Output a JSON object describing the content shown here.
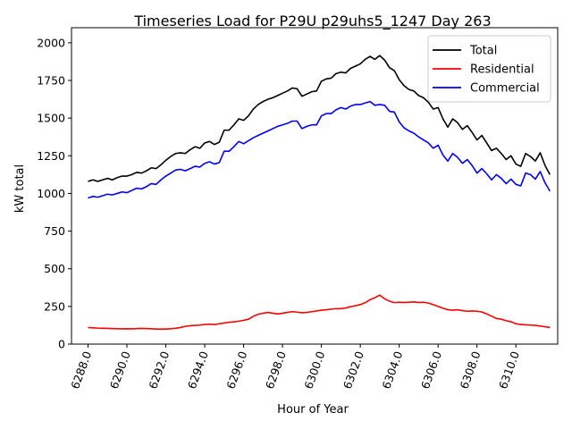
{
  "chart_data": {
    "type": "line",
    "title": "Timeseries Load for P29U p29uhs5_1247  Day 263",
    "xlabel": "Hour of Year",
    "ylabel": "kW total",
    "xlim": [
      6287.15,
      6312.15
    ],
    "ylim": [
      0,
      2100
    ],
    "x_ticks": [
      6288,
      6290,
      6292,
      6294,
      6296,
      6298,
      6300,
      6302,
      6304,
      6306,
      6308,
      6310
    ],
    "x_tick_labels": [
      "6288.0",
      "6290.0",
      "6292.0",
      "6294.0",
      "6296.0",
      "6298.0",
      "6300.0",
      "6302.0",
      "6304.0",
      "6306.0",
      "6308.0",
      "6310.0"
    ],
    "y_ticks": [
      0,
      250,
      500,
      750,
      1000,
      1250,
      1500,
      1750,
      2000
    ],
    "y_tick_labels": [
      "0",
      "250",
      "500",
      "750",
      "1000",
      "1250",
      "1500",
      "1750",
      "2000"
    ],
    "legend_position": "top-right",
    "x_start": 6288,
    "x_step": 0.25,
    "series": [
      {
        "name": "Total",
        "color": "#000000",
        "values": [
          1080,
          1090,
          1080,
          1090,
          1100,
          1090,
          1105,
          1115,
          1115,
          1125,
          1140,
          1135,
          1150,
          1170,
          1165,
          1190,
          1220,
          1245,
          1265,
          1270,
          1265,
          1290,
          1310,
          1300,
          1335,
          1345,
          1325,
          1340,
          1420,
          1420,
          1455,
          1495,
          1485,
          1515,
          1560,
          1590,
          1610,
          1625,
          1635,
          1650,
          1665,
          1680,
          1700,
          1695,
          1645,
          1660,
          1675,
          1680,
          1745,
          1760,
          1765,
          1795,
          1805,
          1800,
          1830,
          1845,
          1860,
          1890,
          1910,
          1890,
          1915,
          1885,
          1835,
          1815,
          1755,
          1715,
          1690,
          1680,
          1650,
          1635,
          1605,
          1560,
          1570,
          1495,
          1440,
          1495,
          1470,
          1425,
          1450,
          1405,
          1355,
          1385,
          1335,
          1285,
          1300,
          1265,
          1225,
          1250,
          1195,
          1180,
          1265,
          1245,
          1215,
          1270,
          1185,
          1125
        ]
      },
      {
        "name": "Residential",
        "color": "#ff0000",
        "values": [
          110,
          108,
          106,
          105,
          104,
          103,
          102,
          101,
          102,
          101,
          103,
          104,
          103,
          102,
          100,
          100,
          100,
          102,
          105,
          110,
          118,
          122,
          124,
          126,
          130,
          132,
          130,
          135,
          140,
          145,
          148,
          152,
          158,
          165,
          185,
          198,
          205,
          210,
          205,
          200,
          205,
          210,
          215,
          212,
          208,
          210,
          215,
          220,
          225,
          228,
          232,
          235,
          235,
          240,
          248,
          255,
          262,
          275,
          295,
          308,
          325,
          300,
          285,
          275,
          278,
          276,
          278,
          280,
          276,
          278,
          272,
          262,
          250,
          238,
          228,
          225,
          228,
          222,
          218,
          220,
          218,
          213,
          200,
          185,
          170,
          165,
          155,
          148,
          135,
          130,
          128,
          126,
          124,
          120,
          115,
          110
        ]
      },
      {
        "name": "Commercial",
        "color": "#0000ff",
        "values": [
          970,
          980,
          975,
          985,
          995,
          990,
          1000,
          1010,
          1005,
          1020,
          1035,
          1030,
          1045,
          1065,
          1060,
          1090,
          1115,
          1135,
          1155,
          1160,
          1150,
          1165,
          1180,
          1175,
          1200,
          1210,
          1195,
          1205,
          1280,
          1280,
          1310,
          1345,
          1330,
          1350,
          1370,
          1385,
          1400,
          1415,
          1430,
          1445,
          1455,
          1465,
          1480,
          1480,
          1430,
          1445,
          1455,
          1455,
          1515,
          1530,
          1530,
          1555,
          1570,
          1560,
          1580,
          1590,
          1590,
          1600,
          1610,
          1585,
          1590,
          1585,
          1545,
          1540,
          1475,
          1435,
          1415,
          1400,
          1375,
          1355,
          1335,
          1300,
          1320,
          1255,
          1215,
          1265,
          1240,
          1200,
          1225,
          1185,
          1135,
          1165,
          1130,
          1090,
          1125,
          1100,
          1065,
          1095,
          1060,
          1050,
          1135,
          1125,
          1095,
          1145,
          1070,
          1015
        ]
      }
    ]
  }
}
